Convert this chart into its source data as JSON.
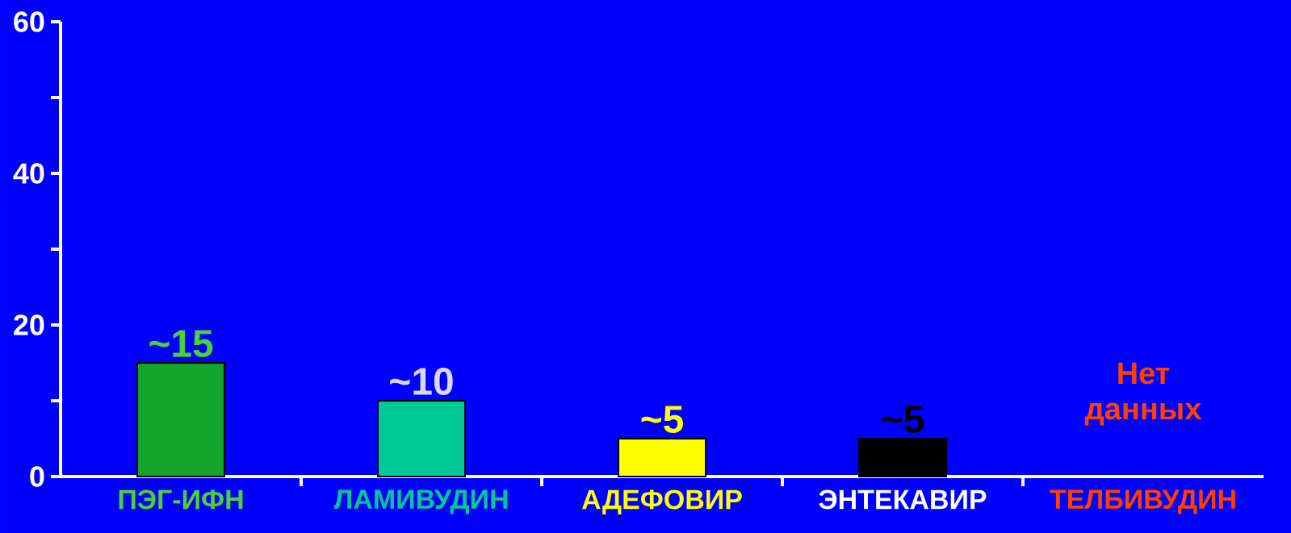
{
  "chart_data": {
    "type": "bar",
    "categories": [
      "ПЭГ-ИФН",
      "ЛАМИВУДИН",
      "АДЕФОВИР",
      "ЭНТЕКАВИР",
      "ТЕЛБИВУДИН"
    ],
    "values": [
      15,
      10,
      5,
      5,
      null
    ],
    "colors": [
      "#13a52b",
      "#00c896",
      "#ffff00",
      "#000000",
      "#ff4000"
    ],
    "value_labels": [
      "~15",
      "~10",
      "~5",
      "~5",
      "Нет данных"
    ],
    "ylim": [
      0,
      60
    ],
    "yticks": [
      0,
      {
        "value": 10,
        "label": null
      },
      20,
      {
        "value": 30,
        "label": null
      },
      40,
      {
        "value": 50,
        "label": null
      },
      60
    ],
    "grid": false
  }
}
